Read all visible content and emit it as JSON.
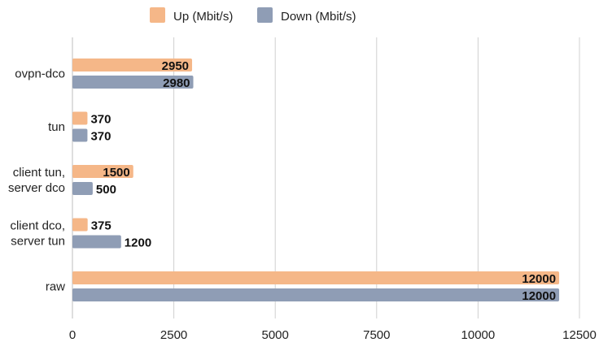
{
  "chart_data": {
    "type": "bar",
    "orientation": "horizontal",
    "categories": [
      "ovpn-dco",
      "tun",
      "client tun,\nserver dco",
      "client dco,\nserver tun",
      "raw"
    ],
    "series": [
      {
        "name": "Up (Mbit/s)",
        "values": [
          2950,
          370,
          1500,
          375,
          12000
        ],
        "color": "#f5b788"
      },
      {
        "name": "Down (Mbit/s)",
        "values": [
          2980,
          370,
          500,
          1200,
          12000
        ],
        "color": "#8f9db5"
      }
    ],
    "xlim": [
      0,
      12500
    ],
    "xticks": [
      0,
      2500,
      5000,
      7500,
      10000,
      12500
    ],
    "grid": "vertical",
    "legend_position": "top-center",
    "title": "",
    "xlabel": "",
    "ylabel": ""
  }
}
